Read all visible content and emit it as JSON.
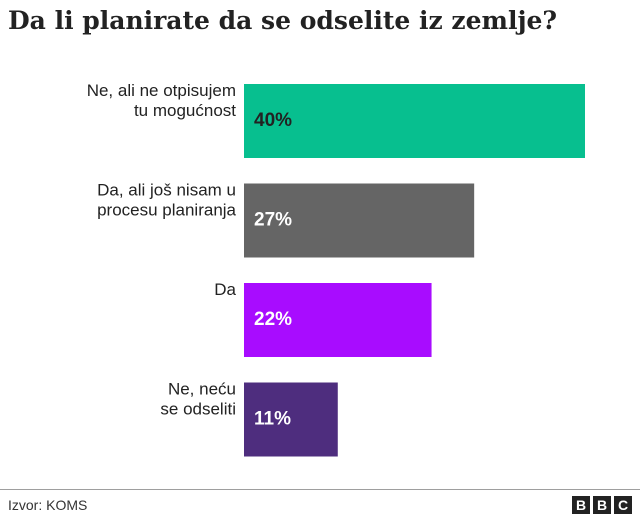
{
  "chart_data": {
    "type": "bar",
    "orientation": "horizontal",
    "title": "Da li planirate da se odselite iz zemlje?",
    "categories": [
      [
        "Ne, ali ne otpisujem",
        "tu mogućnost"
      ],
      [
        "Da, ali još nisam u",
        "procesu planiranja"
      ],
      [
        "Da"
      ],
      [
        "Ne, neću",
        "se odseliti"
      ]
    ],
    "values": [
      40,
      27,
      22,
      11
    ],
    "value_labels": [
      "40%",
      "27%",
      "22%",
      "11%"
    ],
    "colors": [
      "#07bf8f",
      "#656565",
      "#a80cff",
      "#4e2d7e"
    ],
    "label_colors": [
      "#222222",
      "#ffffff",
      "#ffffff",
      "#ffffff"
    ],
    "unit": "%",
    "xlim": [
      0,
      40
    ],
    "grid": false,
    "legend": "none"
  },
  "footer": {
    "source": "Izvor: KOMS",
    "logo_letters": [
      "B",
      "B",
      "C"
    ]
  }
}
